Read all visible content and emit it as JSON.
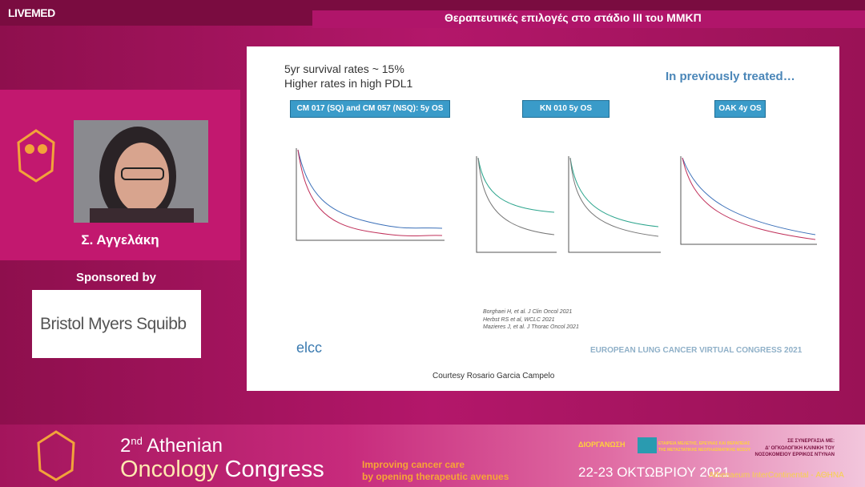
{
  "header": {
    "brand": "LIVEMED",
    "title": "Θεραπευτικές επιλογές στο στάδιο ΙΙΙ του ΜΜΚΠ"
  },
  "speaker": {
    "name": "Σ. Αγγελάκη",
    "sponsored_label": "Sponsored by",
    "sponsor": "Bristol Myers Squibb"
  },
  "slide": {
    "lines": [
      "5yr survival rates ~ 15%",
      "Higher rates in high PDL1"
    ],
    "note": "In previously treated…",
    "tags": [
      "CM 017 (SQ) and CM 057 (NSQ): 5y OS",
      "KN 010 5y OS",
      "OAK 4y OS"
    ],
    "references": [
      "Borghaei H, et al. J Clin Oncol 2021",
      "Herbst RS et al, WCLC 2021",
      "Mazieres J, et al. J Thorac Oncol 2021"
    ],
    "logo": "elcc",
    "congress": "EUROPEAN LUNG CANCER VIRTUAL CONGRESS 2021",
    "courtesy": "Courtesy Rosario Garcia Campelo"
  },
  "footer": {
    "ordinal": "2",
    "ordinal_suffix": "nd",
    "word1": "Athenian",
    "word2": "Oncology",
    "word3": "Congress",
    "tagline": [
      "Improving cancer care",
      "by opening therapeutic avenues"
    ],
    "organizer_label": "ΔΙΟΡΓΑΝΩΣΗ",
    "organizer": [
      "ΕΤΑΙΡΕΙΑ ΜΕΛΕΤΗΣ, ΕΡΕΥΝΑΣ ΚΑΙ ΘΕΡΑΠΕΙΑΣ",
      "ΤΗΣ ΜΕΤΑΣΤΑΤΙΚΗΣ ΝΕΟΠΛΑΣΜΑΤΙΚΗΣ ΝΟΣΟΥ"
    ],
    "dates": "22-23 ΟΚΤΩΒΡΙΟΥ 2021",
    "venue": "Athenaeum InterContinental - ΑΘΗΝΑ",
    "collaboration": [
      "ΣΕ ΣΥΝΕΡΓΑΣΙΑ ΜΕ:",
      "Δ' ΟΓΚΟΛΟΓΙΚΗ ΚΛΙΝΙΚΗ ΤΟΥ",
      "ΝΟΣΟΚΟΜΕΙΟΥ ΕΡΡΙΚΟΣ ΝΤΥΝΑΝ"
    ]
  }
}
